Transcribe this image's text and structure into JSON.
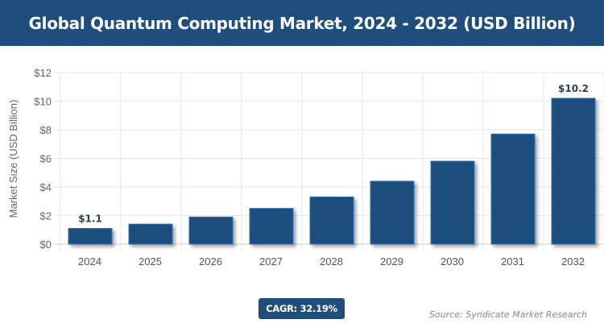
{
  "header": {
    "title": "Global Quantum Computing Market, 2024 - 2032 (USD Billion)"
  },
  "chart_data": {
    "type": "bar",
    "title": "Global Quantum Computing Market, 2024 - 2032 (USD Billion)",
    "xlabel": "",
    "ylabel": "Market Size (USD Billion)",
    "categories": [
      "2024",
      "2025",
      "2026",
      "2027",
      "2028",
      "2029",
      "2030",
      "2031",
      "2032"
    ],
    "values": [
      1.1,
      1.4,
      1.9,
      2.5,
      3.3,
      4.4,
      5.8,
      7.7,
      10.2
    ],
    "data_labels": {
      "2024": "$1.1",
      "2032": "$10.2"
    },
    "ylim": [
      0,
      12
    ],
    "yticks": [
      0,
      2,
      4,
      6,
      8,
      10,
      12
    ],
    "ytick_labels": [
      "$0",
      "$2",
      "$4",
      "$6",
      "$8",
      "$10",
      "$12"
    ],
    "grid": true,
    "bar_color": "#1f4e7c",
    "bar_edge_color": "#2e75b6"
  },
  "badge": {
    "cagr": "CAGR: 32.19%"
  },
  "footer": {
    "source": "Source: Syndicate Market Research"
  }
}
